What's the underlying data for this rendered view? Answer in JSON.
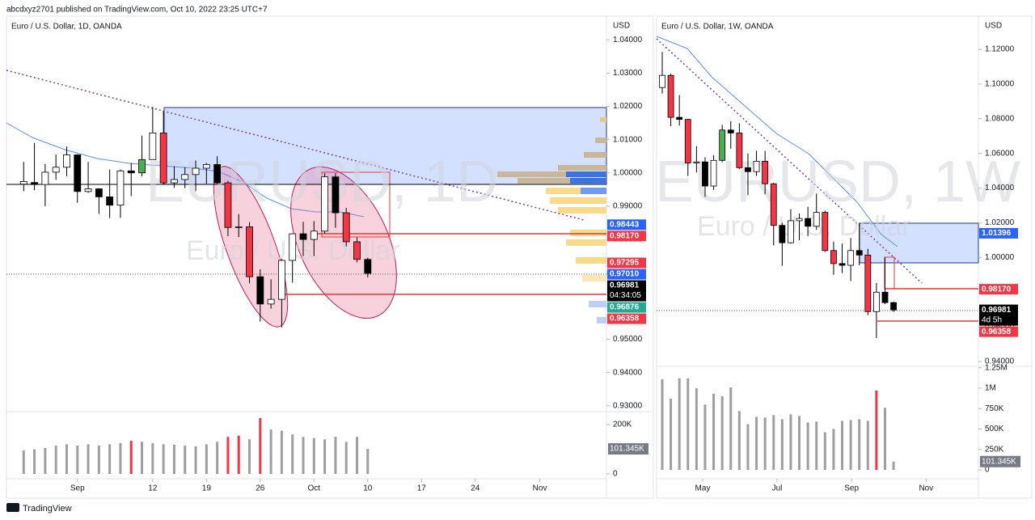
{
  "header": {
    "text": "abcdxyz2701 published on TradingView.com, Oct 10, 2022 23:25 UTC+7"
  },
  "footer": {
    "brand": "TradingView"
  },
  "chart_data": [
    {
      "type": "candlestick",
      "title": "Euro / U.S. Dollar, 1D, OANDA",
      "currency": "USD",
      "watermark": "EURUSD, 1D",
      "watermark_subtitle": "Euro / U.S. Dollar",
      "xlim": [
        -1.6,
        54.2
      ],
      "xticks": [
        {
          "value": 5,
          "label": "Sep"
        },
        {
          "value": 12,
          "label": "12"
        },
        {
          "value": 17,
          "label": "19"
        },
        {
          "value": 22,
          "label": "26"
        },
        {
          "value": 27,
          "label": "Oct"
        },
        {
          "value": 32,
          "label": "10"
        },
        {
          "value": 37,
          "label": "17"
        },
        {
          "value": 42,
          "label": "24"
        },
        {
          "value": 48,
          "label": "Nov"
        }
      ],
      "ylim": [
        0.9285,
        1.0466
      ],
      "yticks": [
        {
          "value": 1.04,
          "label": "1.04000"
        },
        {
          "value": 1.03,
          "label": "1.03000"
        },
        {
          "value": 1.02,
          "label": "1.02000"
        },
        {
          "value": 1.01,
          "label": "1.01000"
        },
        {
          "value": 1.0,
          "label": "1.00000"
        },
        {
          "value": 0.99,
          "label": "0.99000"
        },
        {
          "value": 0.98,
          "label": "0.98000"
        },
        {
          "value": 0.97,
          "label": "0.97000"
        },
        {
          "value": 0.96,
          "label": "0.96000"
        },
        {
          "value": 0.95,
          "label": "0.95000"
        },
        {
          "value": 0.94,
          "label": "0.94000"
        },
        {
          "value": 0.93,
          "label": "0.93000"
        }
      ],
      "open": [
        0.9966,
        0.9971,
        0.9965,
        1.0002,
        1.0017,
        1.0054,
        0.9944,
        0.9952,
        0.9928,
        0.9903,
        1.0006,
        1.0,
        1.004,
        1.012,
        0.997,
        0.998,
        0.9995,
        1.0014,
        1.0025,
        0.997,
        0.9836,
        0.9838,
        0.9688,
        0.9606,
        0.962,
        0.9737,
        0.9817,
        0.98,
        0.9825,
        0.9988,
        0.988,
        0.9793,
        0.974
      ],
      "high": [
        1.0033,
        1.009,
        1.0026,
        1.0055,
        1.008,
        1.0056,
        1.0033,
        0.9954,
        1.001,
        1.001,
        1.003,
        1.0112,
        1.0198,
        1.0186,
        1.002,
        1.0017,
        1.0037,
        1.003,
        1.005,
        0.9976,
        0.9876,
        0.9852,
        0.971,
        0.968,
        0.9742,
        0.9818,
        0.9853,
        0.9855,
        0.9999,
        0.9999,
        0.9895,
        0.9806,
        0.9745
      ],
      "low": [
        0.9945,
        0.9948,
        0.99,
        0.998,
        0.999,
        0.991,
        0.994,
        0.9877,
        0.9864,
        0.9865,
        0.993,
        0.999,
        1.004,
        0.9966,
        0.9955,
        0.9954,
        0.9945,
        0.9967,
        0.9965,
        0.981,
        0.9807,
        0.9668,
        0.9553,
        0.9592,
        0.9536,
        0.967,
        0.975,
        0.975,
        0.9818,
        0.9835,
        0.9779,
        0.9731,
        0.9686
      ],
      "close": [
        0.9974,
        0.9965,
        1.0002,
        1.0017,
        1.0054,
        0.9944,
        0.9952,
        0.9928,
        0.9903,
        1.0006,
        1.0,
        1.004,
        1.012,
        0.997,
        0.998,
        0.9995,
        1.0014,
        1.0025,
        0.997,
        0.9836,
        0.9838,
        0.9688,
        0.9606,
        0.962,
        0.9737,
        0.9817,
        0.98,
        0.9825,
        0.9988,
        0.988,
        0.9793,
        0.974,
        0.9698
      ],
      "colors": [
        "white",
        "black",
        "white",
        "white",
        "white",
        "black",
        "white",
        "black",
        "black",
        "white",
        "black",
        "green",
        "white",
        "red",
        "white",
        "white",
        "white",
        "white",
        "black",
        "red",
        "white",
        "red",
        "black",
        "white",
        "white",
        "white",
        "black",
        "white",
        "white",
        "black",
        "red",
        "red",
        "black"
      ],
      "volume": {
        "ylim": [
          0,
          249000
        ],
        "yticks": [
          {
            "value": 200000,
            "label": "200K"
          },
          0
        ],
        "values": [
          95000,
          100000,
          105000,
          115000,
          120000,
          115000,
          120000,
          115000,
          120000,
          125000,
          134000,
          130000,
          125000,
          120000,
          118000,
          115000,
          112000,
          120000,
          130000,
          150000,
          155000,
          140000,
          226000,
          180000,
          175000,
          160000,
          150000,
          145000,
          140000,
          150000,
          130000,
          150000,
          101345
        ],
        "colors": [
          "#9e9e9e",
          "#9e9e9e",
          "#9e9e9e",
          "#9e9e9e",
          "#9e9e9e",
          "#9e9e9e",
          "#9e9e9e",
          "#9e9e9e",
          "#9e9e9e",
          "#9e9e9e",
          "#f23645",
          "#9e9e9e",
          "#9e9e9e",
          "#9e9e9e",
          "#9e9e9e",
          "#9e9e9e",
          "#9e9e9e",
          "#9e9e9e",
          "#9e9e9e",
          "#f23645",
          "#f23645",
          "#9e9e9e",
          "#f23645",
          "#9e9e9e",
          "#9e9e9e",
          "#9e9e9e",
          "#9e9e9e",
          "#9e9e9e",
          "#9e9e9e",
          "#9e9e9e",
          "#9e9e9e",
          "#9e9e9e",
          "#9e9e9e"
        ],
        "last": {
          "value": 101345,
          "label": "101.345K"
        }
      },
      "price_labels": [
        {
          "value": 0.98443,
          "label": "0.98443",
          "color": "#2962ff"
        },
        {
          "value": 0.9817,
          "label": "0.98170",
          "color": "#f23645"
        },
        {
          "value": 0.97295,
          "label": "0.97295",
          "color": "#f23645"
        },
        {
          "value": 0.9701,
          "label": "0.97010",
          "color": "#2962ff"
        },
        {
          "value": 0.96981,
          "label": "0.96981",
          "color": "#000000",
          "countdown": "04:34:05"
        },
        {
          "value": 0.96876,
          "label": "0.96876",
          "color": "#22ab94"
        },
        {
          "value": 0.96358,
          "label": "0.96358",
          "color": "#f23645"
        }
      ]
    },
    {
      "type": "candlestick",
      "title": "Euro / U.S. Dollar, 1W, OANDA",
      "currency": "USD",
      "watermark": "EURUSD, 1W",
      "watermark_subtitle": "Euro / U.S. Dollar",
      "xlim": [
        -0.66,
        36.9
      ],
      "xticks": [
        {
          "value": 4.72,
          "label": "May"
        },
        {
          "value": 13.4,
          "label": "Jul"
        },
        {
          "value": 22.1,
          "label": "Sep"
        },
        {
          "value": 30.8,
          "label": "Nov"
        }
      ],
      "ylim": [
        0.9377,
        1.1382
      ],
      "yticks": [
        {
          "value": 1.12,
          "label": "1.12000"
        },
        {
          "value": 1.1,
          "label": "1.10000"
        },
        {
          "value": 1.08,
          "label": "1.08000"
        },
        {
          "value": 1.06,
          "label": "1.06000"
        },
        {
          "value": 1.04,
          "label": "1.04000"
        },
        {
          "value": 1.02,
          "label": "1.02000"
        },
        {
          "value": 1.0,
          "label": "1.00000"
        },
        {
          "value": 0.98,
          "label": "0.98000"
        },
        {
          "value": 0.96,
          "label": "0.96000"
        },
        {
          "value": 0.94,
          "label": "0.94000"
        }
      ],
      "open": [
        1.098,
        1.105,
        1.0808,
        1.0796,
        1.0545,
        1.0551,
        1.0412,
        1.056,
        1.0735,
        1.0718,
        1.0518,
        1.0495,
        1.0555,
        1.0425,
        1.0185,
        1.0085,
        1.0212,
        1.0225,
        1.018,
        1.026,
        1.004,
        0.9965,
        0.9955,
        1.004,
        1.0014,
        0.9688,
        0.98,
        0.974
      ],
      "high": [
        1.1185,
        1.106,
        1.0936,
        1.08,
        1.0642,
        1.0578,
        1.059,
        1.0765,
        1.0786,
        1.0774,
        1.06,
        1.0615,
        1.0615,
        1.043,
        1.02,
        1.0278,
        1.0254,
        1.0293,
        1.0368,
        1.027,
        1.009,
        1.008,
        1.0112,
        1.0198,
        1.005,
        0.9853,
        0.9999,
        0.9745
      ],
      "low": [
        1.0945,
        1.0757,
        1.076,
        1.047,
        1.049,
        1.035,
        1.039,
        1.055,
        1.0627,
        1.051,
        1.036,
        1.047,
        1.0365,
        1.007,
        0.9952,
        1.008,
        1.01,
        1.0123,
        1.016,
        1.0032,
        0.99,
        0.991,
        0.9864,
        0.9955,
        0.9668,
        0.9536,
        0.9731,
        0.9686
      ],
      "close": [
        1.105,
        1.0808,
        1.0796,
        1.0545,
        1.0551,
        1.0412,
        1.056,
        1.0735,
        1.0718,
        1.0518,
        1.0495,
        1.0555,
        1.0425,
        1.0185,
        1.0085,
        1.0212,
        1.0225,
        1.018,
        1.026,
        1.004,
        0.9965,
        0.9955,
        1.004,
        1.0014,
        0.9688,
        0.98,
        0.974,
        0.9698
      ],
      "colors": [
        "white",
        "red",
        "black",
        "red",
        "white",
        "black",
        "white",
        "green",
        "black",
        "red",
        "black",
        "white",
        "red",
        "red",
        "black",
        "white",
        "white",
        "black",
        "white",
        "red",
        "red",
        "black",
        "white",
        "black",
        "red",
        "white",
        "black",
        "black"
      ],
      "volume": {
        "ylim": [
          0,
          1257000
        ],
        "yticks": [
          {
            "value": 1250000,
            "label": "1.25M"
          },
          {
            "value": 1000000,
            "label": "1M"
          },
          {
            "value": 750000,
            "label": "750K"
          },
          {
            "value": 500000,
            "label": "500K"
          },
          {
            "value": 250000,
            "label": "250K"
          },
          0
        ],
        "values": [
          1110000,
          870000,
          1120000,
          1120000,
          1000000,
          800000,
          930000,
          900000,
          1010000,
          720000,
          560000,
          650000,
          640000,
          670000,
          620000,
          680000,
          660000,
          580000,
          590000,
          460000,
          500000,
          600000,
          610000,
          620000,
          600000,
          970000,
          760000,
          101345
        ],
        "colors": [
          "#9e9e9e",
          "#9e9e9e",
          "#9e9e9e",
          "#9e9e9e",
          "#9e9e9e",
          "#9e9e9e",
          "#9e9e9e",
          "#9e9e9e",
          "#9e9e9e",
          "#9e9e9e",
          "#9e9e9e",
          "#9e9e9e",
          "#9e9e9e",
          "#9e9e9e",
          "#9e9e9e",
          "#9e9e9e",
          "#9e9e9e",
          "#9e9e9e",
          "#9e9e9e",
          "#9e9e9e",
          "#9e9e9e",
          "#9e9e9e",
          "#9e9e9e",
          "#9e9e9e",
          "#9e9e9e",
          "#f23645",
          "#9e9e9e",
          "#9e9e9e"
        ],
        "last": {
          "value": 101345,
          "label": "101.345K"
        }
      },
      "price_labels": [
        {
          "value": 1.01396,
          "label": "1.01396",
          "color": "#2962ff"
        },
        {
          "value": 0.9817,
          "label": "0.98170",
          "color": "#f23645"
        },
        {
          "value": 0.96981,
          "label": "0.96981",
          "color": "#000000",
          "countdown": "4d 5h"
        },
        {
          "value": 0.96358,
          "label": "0.96358",
          "color": "#f23645"
        }
      ]
    }
  ]
}
